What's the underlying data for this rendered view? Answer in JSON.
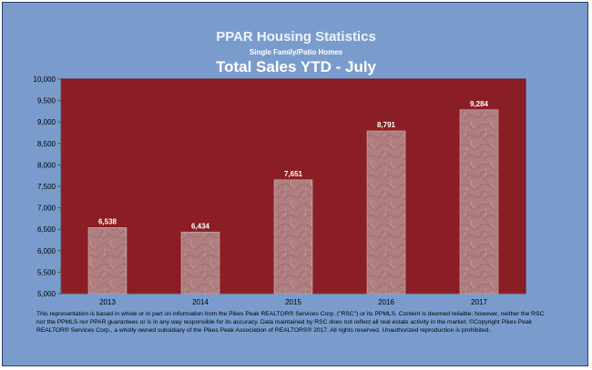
{
  "header": {
    "title": "PPAR Housing Statistics",
    "subtitle": "Single Family/Patio Homes",
    "chart_title": "Total Sales YTD - July"
  },
  "footnote": "This representation is based in whole or in part on information from the Pikes Peak REALTOR® Services Corp. (\"RSC\") or its PPMLS.  Content is deemed reliable; however, neither the RSC nor the PPMLS nor PPAR guarantees or is in any way responsible for its accuracy.  Data maintained by RSC does not reflect all real estate activity in the market.  ©Copyright Pikes Peak REALTOR® Services Corp., a wholly owned subsidiary of the Pikes Peak Association of REALTORS® 2017.  All rights reserved.  Unauthorized reproduction is prohibited.",
  "colors": {
    "frame_bg": "#7a9ccd",
    "plot_bg": "#8b1e24",
    "bar_fill": "#b08080",
    "title_text": "#ffffff"
  },
  "chart_data": {
    "type": "bar",
    "title": "Total Sales YTD - July",
    "categories": [
      "2013",
      "2014",
      "2015",
      "2016",
      "2017"
    ],
    "values": [
      6538,
      6434,
      7651,
      8791,
      9284
    ],
    "data_labels": [
      "6,538",
      "6,434",
      "7,651",
      "8,791",
      "9,284"
    ],
    "ylim": [
      5000,
      10000
    ],
    "yticks": [
      "5,000",
      "5,500",
      "6,000",
      "6,500",
      "7,000",
      "7,500",
      "8,000",
      "8,500",
      "9,000",
      "9,500",
      "10,000"
    ],
    "grid": false,
    "legend": "none"
  }
}
